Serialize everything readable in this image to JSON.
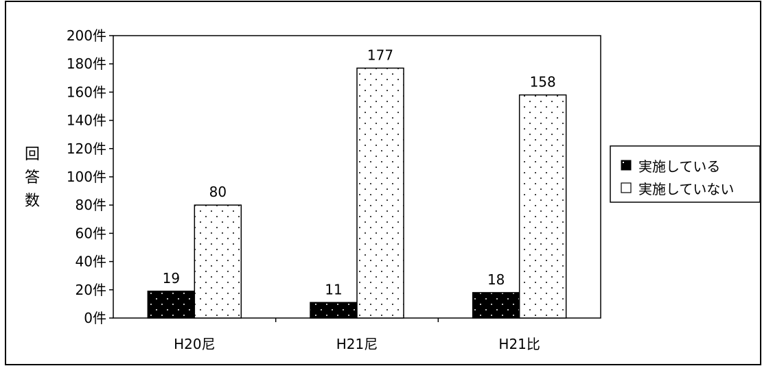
{
  "chart_data": {
    "type": "bar",
    "categories": [
      "H20尼",
      "H21尼",
      "H21比"
    ],
    "series": [
      {
        "name": "実施している",
        "values": [
          19,
          11,
          18
        ]
      },
      {
        "name": "実施していない",
        "values": [
          80,
          177,
          158
        ]
      }
    ],
    "ylabel": "回答数",
    "ylim": [
      0,
      200
    ],
    "ytick_step": 20,
    "ytick_suffix": "件",
    "grid": false,
    "legend": "right",
    "colors": {
      "series_fill": [
        "#000000",
        "#ffffff"
      ],
      "series_dots": [
        "#ffffff",
        "#000000"
      ],
      "stroke": "#000000"
    }
  }
}
